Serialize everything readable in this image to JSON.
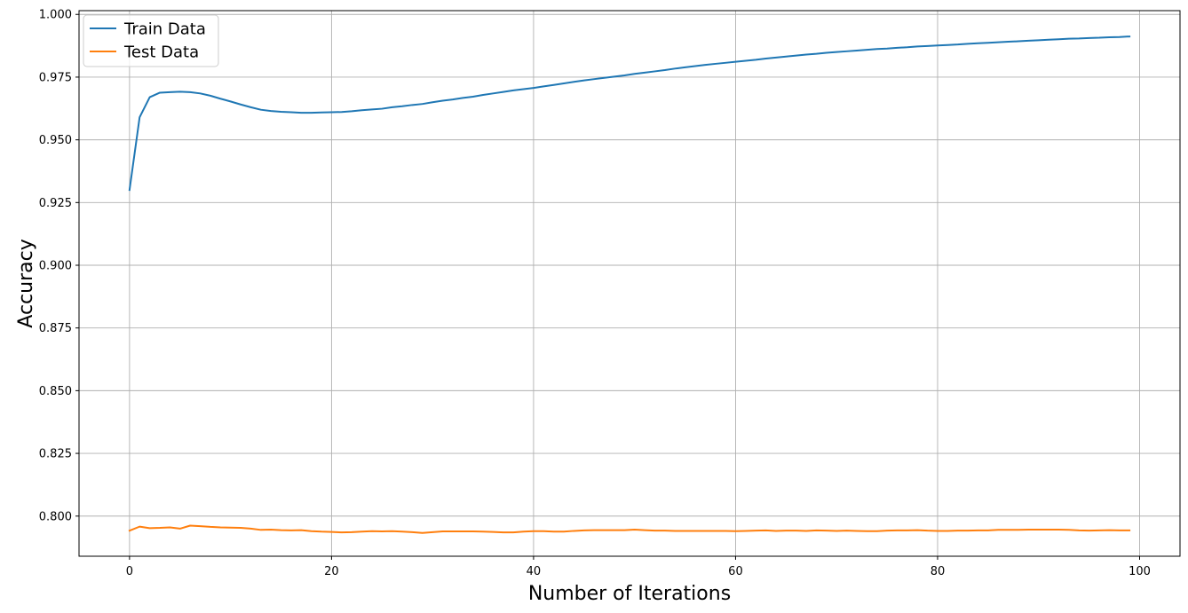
{
  "chart_data": {
    "type": "line",
    "title": "",
    "xlabel": "Number of Iterations",
    "ylabel": "Accuracy",
    "xlim": [
      -5,
      104
    ],
    "ylim": [
      0.784,
      1.0015
    ],
    "xticks": [
      0,
      20,
      40,
      60,
      80,
      100
    ],
    "xtick_labels": [
      "0",
      "20",
      "40",
      "60",
      "80",
      "100"
    ],
    "yticks": [
      0.8,
      0.825,
      0.85,
      0.875,
      0.9,
      0.925,
      0.95,
      0.975,
      1.0
    ],
    "ytick_labels": [
      "0.800",
      "0.825",
      "0.850",
      "0.875",
      "0.900",
      "0.925",
      "0.950",
      "0.975",
      "1.000"
    ],
    "grid": true,
    "legend_position": "top-left",
    "x": [
      0,
      1,
      2,
      3,
      4,
      5,
      6,
      7,
      8,
      9,
      10,
      11,
      12,
      13,
      14,
      15,
      16,
      17,
      18,
      19,
      20,
      21,
      22,
      23,
      24,
      25,
      26,
      27,
      28,
      29,
      30,
      31,
      32,
      33,
      34,
      35,
      36,
      37,
      38,
      39,
      40,
      41,
      42,
      43,
      44,
      45,
      46,
      47,
      48,
      49,
      50,
      51,
      52,
      53,
      54,
      55,
      56,
      57,
      58,
      59,
      60,
      61,
      62,
      63,
      64,
      65,
      66,
      67,
      68,
      69,
      70,
      71,
      72,
      73,
      74,
      75,
      76,
      77,
      78,
      79,
      80,
      81,
      82,
      83,
      84,
      85,
      86,
      87,
      88,
      89,
      90,
      91,
      92,
      93,
      94,
      95,
      96,
      97,
      98,
      99
    ],
    "series": [
      {
        "name": "Train Data",
        "color": "#1f77b4",
        "values": [
          0.93,
          0.959,
          0.967,
          0.9688,
          0.969,
          0.9692,
          0.969,
          0.9685,
          0.9676,
          0.9664,
          0.9653,
          0.9641,
          0.963,
          0.962,
          0.9615,
          0.9612,
          0.961,
          0.9608,
          0.9608,
          0.9609,
          0.961,
          0.9611,
          0.9614,
          0.9618,
          0.9621,
          0.9624,
          0.963,
          0.9634,
          0.9639,
          0.9643,
          0.965,
          0.9656,
          0.9661,
          0.9667,
          0.9672,
          0.9679,
          0.9685,
          0.9691,
          0.9697,
          0.9702,
          0.9707,
          0.9713,
          0.9719,
          0.9725,
          0.9731,
          0.9737,
          0.9742,
          0.9747,
          0.9752,
          0.9757,
          0.9763,
          0.9768,
          0.9773,
          0.9778,
          0.9784,
          0.9789,
          0.9794,
          0.9799,
          0.9803,
          0.9807,
          0.9811,
          0.9815,
          0.9819,
          0.9824,
          0.9828,
          0.9832,
          0.9836,
          0.984,
          0.9843,
          0.9847,
          0.985,
          0.9853,
          0.9856,
          0.9859,
          0.9862,
          0.9864,
          0.9867,
          0.9869,
          0.9872,
          0.9874,
          0.9876,
          0.9878,
          0.988,
          0.9883,
          0.9885,
          0.9887,
          0.9889,
          0.9891,
          0.9893,
          0.9895,
          0.9897,
          0.9899,
          0.9901,
          0.9903,
          0.9904,
          0.9906,
          0.9907,
          0.9909,
          0.991,
          0.9912
        ]
      },
      {
        "name": "Test Data",
        "color": "#ff7f0e",
        "values": [
          0.7942,
          0.7958,
          0.7952,
          0.7953,
          0.7955,
          0.795,
          0.7962,
          0.796,
          0.7957,
          0.7955,
          0.7954,
          0.7953,
          0.795,
          0.7945,
          0.7946,
          0.7944,
          0.7943,
          0.7944,
          0.794,
          0.7938,
          0.7937,
          0.7935,
          0.7936,
          0.7938,
          0.794,
          0.7939,
          0.794,
          0.7938,
          0.7936,
          0.7933,
          0.7936,
          0.7939,
          0.7939,
          0.7939,
          0.7939,
          0.7938,
          0.7937,
          0.7935,
          0.7935,
          0.7938,
          0.794,
          0.794,
          0.7938,
          0.7938,
          0.7941,
          0.7943,
          0.7944,
          0.7944,
          0.7944,
          0.7944,
          0.7946,
          0.7944,
          0.7942,
          0.7942,
          0.7941,
          0.7941,
          0.7941,
          0.7941,
          0.7941,
          0.7941,
          0.794,
          0.7941,
          0.7942,
          0.7943,
          0.7941,
          0.7942,
          0.7942,
          0.7941,
          0.7943,
          0.7942,
          0.7941,
          0.7942,
          0.7941,
          0.794,
          0.794,
          0.7942,
          0.7943,
          0.7943,
          0.7944,
          0.7942,
          0.7941,
          0.7941,
          0.7942,
          0.7942,
          0.7943,
          0.7943,
          0.7945,
          0.7945,
          0.7945,
          0.7946,
          0.7946,
          0.7946,
          0.7946,
          0.7945,
          0.7943,
          0.7942,
          0.7943,
          0.7944,
          0.7943,
          0.7943
        ]
      }
    ]
  }
}
